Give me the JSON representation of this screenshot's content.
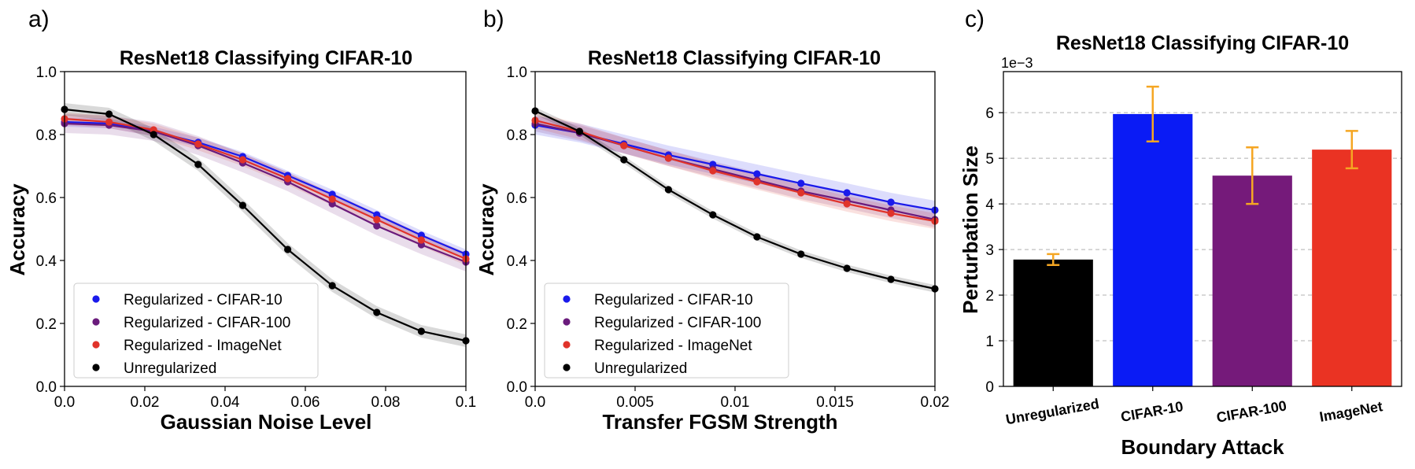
{
  "chart_data": [
    {
      "type": "line",
      "panel": "a)",
      "title": "ResNet18 Classifying CIFAR-10",
      "xlabel": "Gaussian Noise Level",
      "ylabel": "Accuracy",
      "xlim": [
        0,
        0.1
      ],
      "ylim": [
        0,
        1.0
      ],
      "xticks": [
        0.0,
        0.02,
        0.04,
        0.06,
        0.08,
        0.1
      ],
      "xtick_labels": [
        "0.0",
        "0.02",
        "0.04",
        "0.06",
        "0.08",
        "0.1"
      ],
      "yticks": [
        0.0,
        0.2,
        0.4,
        0.6,
        0.8,
        1.0
      ],
      "ytick_labels": [
        "0.0",
        "0.2",
        "0.4",
        "0.6",
        "0.8",
        "1.0"
      ],
      "x": [
        0,
        0.0111,
        0.0222,
        0.0333,
        0.0444,
        0.0556,
        0.0667,
        0.0778,
        0.0889,
        0.1
      ],
      "series": [
        {
          "name": "Regularized - CIFAR-10",
          "color": "#1a1aeb",
          "band": 0.015,
          "values": [
            0.84,
            0.835,
            0.81,
            0.775,
            0.73,
            0.67,
            0.61,
            0.545,
            0.48,
            0.42
          ]
        },
        {
          "name": "Regularized - CIFAR-100",
          "color": "#6a1b7c",
          "band": 0.03,
          "values": [
            0.835,
            0.83,
            0.81,
            0.765,
            0.71,
            0.65,
            0.58,
            0.51,
            0.45,
            0.395
          ]
        },
        {
          "name": "Regularized - ImageNet",
          "color": "#e0332a",
          "band": 0.02,
          "values": [
            0.85,
            0.84,
            0.815,
            0.77,
            0.72,
            0.66,
            0.595,
            0.53,
            0.465,
            0.405
          ]
        },
        {
          "name": "Unregularized",
          "color": "#000000",
          "band": 0.02,
          "values": [
            0.88,
            0.865,
            0.8,
            0.705,
            0.575,
            0.435,
            0.32,
            0.235,
            0.175,
            0.145
          ]
        }
      ],
      "legend": "lower-left"
    },
    {
      "type": "line",
      "panel": "b)",
      "title": "ResNet18 Classifying CIFAR-10",
      "xlabel": "Transfer FGSM Strength",
      "ylabel": "Accuracy",
      "xlim": [
        0,
        0.02
      ],
      "ylim": [
        0,
        1.0
      ],
      "xticks": [
        0.0,
        0.005,
        0.01,
        0.015,
        0.02
      ],
      "xtick_labels": [
        "0.0",
        "0.005",
        "0.01",
        "0.015",
        "0.02"
      ],
      "yticks": [
        0.0,
        0.2,
        0.4,
        0.6,
        0.8,
        1.0
      ],
      "ytick_labels": [
        "0.0",
        "0.2",
        "0.4",
        "0.6",
        "0.8",
        "1.0"
      ],
      "x": [
        0,
        0.00222,
        0.00444,
        0.00667,
        0.00889,
        0.0111,
        0.0133,
        0.0156,
        0.0178,
        0.02
      ],
      "series": [
        {
          "name": "Regularized - CIFAR-10",
          "color": "#1a1aeb",
          "band": 0.03,
          "values": [
            0.83,
            0.805,
            0.77,
            0.735,
            0.705,
            0.675,
            0.645,
            0.615,
            0.585,
            0.56
          ]
        },
        {
          "name": "Regularized - CIFAR-100",
          "color": "#6a1b7c",
          "band": 0.025,
          "values": [
            0.835,
            0.805,
            0.765,
            0.725,
            0.69,
            0.655,
            0.62,
            0.59,
            0.56,
            0.53
          ]
        },
        {
          "name": "Regularized - ImageNet",
          "color": "#e0332a",
          "band": 0.025,
          "values": [
            0.845,
            0.81,
            0.765,
            0.725,
            0.685,
            0.65,
            0.615,
            0.58,
            0.55,
            0.525
          ]
        },
        {
          "name": "Unregularized",
          "color": "#000000",
          "band": 0.012,
          "values": [
            0.875,
            0.81,
            0.72,
            0.625,
            0.545,
            0.475,
            0.42,
            0.375,
            0.34,
            0.31
          ]
        }
      ],
      "legend": "lower-left"
    },
    {
      "type": "bar",
      "panel": "c)",
      "title": "ResNet18 Classifying CIFAR-10",
      "xlabel": "Boundary Attack",
      "ylabel": "Perturbation Size",
      "y_offset_label": "1e−3",
      "ylim": [
        0,
        6.9
      ],
      "yticks": [
        0,
        1,
        2,
        3,
        4,
        5,
        6
      ],
      "ytick_labels": [
        "0",
        "1",
        "2",
        "3",
        "4",
        "5",
        "6"
      ],
      "grid": true,
      "categories": [
        "Unregularized",
        "CIFAR-10",
        "CIFAR-100",
        "ImageNet"
      ],
      "values": [
        2.78,
        5.97,
        4.62,
        5.19
      ],
      "errors": [
        0.12,
        0.6,
        0.62,
        0.41
      ],
      "colors": [
        "#000000",
        "#0a1bf5",
        "#751a7a",
        "#ea3323"
      ],
      "error_color": "#f5a623"
    }
  ]
}
